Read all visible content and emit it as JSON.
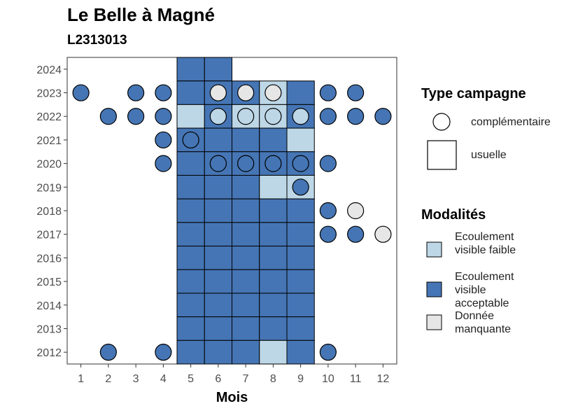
{
  "title": "Le Belle à Magné",
  "subtitle": "L2313013",
  "legend_type": {
    "title": "Type campagne",
    "items": [
      "complémentaire",
      "usuelle"
    ]
  },
  "legend_modalites": {
    "title": "Modalités",
    "items": [
      "Ecoulement visible faible",
      "Ecoulement visible acceptable",
      "Donnée manquante"
    ]
  },
  "colors": {
    "Ecoulement visible faible": "#bdd7e7",
    "Ecoulement visible acceptable": "#4575b4",
    "Donnée manquante": "#e6e6e6"
  },
  "chart_data": {
    "type": "heatmap",
    "title": "Le Belle à Magné",
    "subtitle": "L2313013",
    "xlabel": "Mois",
    "ylabel": "",
    "x_ticks": [
      1,
      2,
      3,
      4,
      5,
      6,
      7,
      8,
      9,
      10,
      11,
      12
    ],
    "y_ticks": [
      2012,
      2013,
      2014,
      2015,
      2016,
      2017,
      2018,
      2019,
      2020,
      2021,
      2022,
      2023,
      2024
    ],
    "xlim": [
      0.5,
      12.5
    ],
    "ylim": [
      2011.5,
      2024.5
    ],
    "usuelle": [
      {
        "year": 2024,
        "month": 5,
        "modalite": "Ecoulement visible acceptable"
      },
      {
        "year": 2024,
        "month": 6,
        "modalite": "Ecoulement visible acceptable"
      },
      {
        "year": 2023,
        "month": 5,
        "modalite": "Ecoulement visible acceptable"
      },
      {
        "year": 2023,
        "month": 6,
        "modalite": "Ecoulement visible acceptable"
      },
      {
        "year": 2023,
        "month": 7,
        "modalite": "Ecoulement visible acceptable"
      },
      {
        "year": 2023,
        "month": 8,
        "modalite": "Ecoulement visible faible"
      },
      {
        "year": 2023,
        "month": 9,
        "modalite": "Ecoulement visible acceptable"
      },
      {
        "year": 2022,
        "month": 5,
        "modalite": "Ecoulement visible faible"
      },
      {
        "year": 2022,
        "month": 6,
        "modalite": "Ecoulement visible acceptable"
      },
      {
        "year": 2022,
        "month": 7,
        "modalite": "Ecoulement visible faible"
      },
      {
        "year": 2022,
        "month": 8,
        "modalite": "Ecoulement visible faible"
      },
      {
        "year": 2022,
        "month": 9,
        "modalite": "Ecoulement visible acceptable"
      },
      {
        "year": 2021,
        "month": 5,
        "modalite": "Ecoulement visible acceptable"
      },
      {
        "year": 2021,
        "month": 6,
        "modalite": "Ecoulement visible acceptable"
      },
      {
        "year": 2021,
        "month": 7,
        "modalite": "Ecoulement visible acceptable"
      },
      {
        "year": 2021,
        "month": 8,
        "modalite": "Ecoulement visible acceptable"
      },
      {
        "year": 2021,
        "month": 9,
        "modalite": "Ecoulement visible faible"
      },
      {
        "year": 2020,
        "month": 5,
        "modalite": "Ecoulement visible acceptable"
      },
      {
        "year": 2020,
        "month": 6,
        "modalite": "Ecoulement visible acceptable"
      },
      {
        "year": 2020,
        "month": 7,
        "modalite": "Ecoulement visible acceptable"
      },
      {
        "year": 2020,
        "month": 8,
        "modalite": "Ecoulement visible acceptable"
      },
      {
        "year": 2020,
        "month": 9,
        "modalite": "Ecoulement visible acceptable"
      },
      {
        "year": 2019,
        "month": 5,
        "modalite": "Ecoulement visible acceptable"
      },
      {
        "year": 2019,
        "month": 6,
        "modalite": "Ecoulement visible acceptable"
      },
      {
        "year": 2019,
        "month": 7,
        "modalite": "Ecoulement visible acceptable"
      },
      {
        "year": 2019,
        "month": 8,
        "modalite": "Ecoulement visible faible"
      },
      {
        "year": 2019,
        "month": 9,
        "modalite": "Ecoulement visible faible"
      },
      {
        "year": 2018,
        "month": 5,
        "modalite": "Ecoulement visible acceptable"
      },
      {
        "year": 2018,
        "month": 6,
        "modalite": "Ecoulement visible acceptable"
      },
      {
        "year": 2018,
        "month": 7,
        "modalite": "Ecoulement visible acceptable"
      },
      {
        "year": 2018,
        "month": 8,
        "modalite": "Ecoulement visible acceptable"
      },
      {
        "year": 2018,
        "month": 9,
        "modalite": "Ecoulement visible acceptable"
      },
      {
        "year": 2017,
        "month": 5,
        "modalite": "Ecoulement visible acceptable"
      },
      {
        "year": 2017,
        "month": 6,
        "modalite": "Ecoulement visible acceptable"
      },
      {
        "year": 2017,
        "month": 7,
        "modalite": "Ecoulement visible acceptable"
      },
      {
        "year": 2017,
        "month": 8,
        "modalite": "Ecoulement visible acceptable"
      },
      {
        "year": 2017,
        "month": 9,
        "modalite": "Ecoulement visible acceptable"
      },
      {
        "year": 2016,
        "month": 5,
        "modalite": "Ecoulement visible acceptable"
      },
      {
        "year": 2016,
        "month": 6,
        "modalite": "Ecoulement visible acceptable"
      },
      {
        "year": 2016,
        "month": 7,
        "modalite": "Ecoulement visible acceptable"
      },
      {
        "year": 2016,
        "month": 8,
        "modalite": "Ecoulement visible acceptable"
      },
      {
        "year": 2016,
        "month": 9,
        "modalite": "Ecoulement visible acceptable"
      },
      {
        "year": 2015,
        "month": 5,
        "modalite": "Ecoulement visible acceptable"
      },
      {
        "year": 2015,
        "month": 6,
        "modalite": "Ecoulement visible acceptable"
      },
      {
        "year": 2015,
        "month": 7,
        "modalite": "Ecoulement visible acceptable"
      },
      {
        "year": 2015,
        "month": 8,
        "modalite": "Ecoulement visible acceptable"
      },
      {
        "year": 2015,
        "month": 9,
        "modalite": "Ecoulement visible acceptable"
      },
      {
        "year": 2014,
        "month": 5,
        "modalite": "Ecoulement visible acceptable"
      },
      {
        "year": 2014,
        "month": 6,
        "modalite": "Ecoulement visible acceptable"
      },
      {
        "year": 2014,
        "month": 7,
        "modalite": "Ecoulement visible acceptable"
      },
      {
        "year": 2014,
        "month": 8,
        "modalite": "Ecoulement visible acceptable"
      },
      {
        "year": 2014,
        "month": 9,
        "modalite": "Ecoulement visible acceptable"
      },
      {
        "year": 2013,
        "month": 5,
        "modalite": "Ecoulement visible acceptable"
      },
      {
        "year": 2013,
        "month": 6,
        "modalite": "Ecoulement visible acceptable"
      },
      {
        "year": 2013,
        "month": 7,
        "modalite": "Ecoulement visible acceptable"
      },
      {
        "year": 2013,
        "month": 8,
        "modalite": "Ecoulement visible acceptable"
      },
      {
        "year": 2013,
        "month": 9,
        "modalite": "Ecoulement visible acceptable"
      },
      {
        "year": 2012,
        "month": 5,
        "modalite": "Ecoulement visible acceptable"
      },
      {
        "year": 2012,
        "month": 6,
        "modalite": "Ecoulement visible acceptable"
      },
      {
        "year": 2012,
        "month": 7,
        "modalite": "Ecoulement visible acceptable"
      },
      {
        "year": 2012,
        "month": 8,
        "modalite": "Ecoulement visible faible"
      },
      {
        "year": 2012,
        "month": 9,
        "modalite": "Ecoulement visible acceptable"
      }
    ],
    "complementaire": [
      {
        "year": 2023,
        "month": 1,
        "modalite": "Ecoulement visible acceptable"
      },
      {
        "year": 2023,
        "month": 3,
        "modalite": "Ecoulement visible acceptable"
      },
      {
        "year": 2023,
        "month": 4,
        "modalite": "Ecoulement visible acceptable"
      },
      {
        "year": 2023,
        "month": 6,
        "modalite": "Donnée manquante"
      },
      {
        "year": 2023,
        "month": 7,
        "modalite": "Donnée manquante"
      },
      {
        "year": 2023,
        "month": 8,
        "modalite": "Donnée manquante"
      },
      {
        "year": 2023,
        "month": 10,
        "modalite": "Ecoulement visible acceptable"
      },
      {
        "year": 2023,
        "month": 11,
        "modalite": "Ecoulement visible acceptable"
      },
      {
        "year": 2022,
        "month": 2,
        "modalite": "Ecoulement visible acceptable"
      },
      {
        "year": 2022,
        "month": 3,
        "modalite": "Ecoulement visible acceptable"
      },
      {
        "year": 2022,
        "month": 4,
        "modalite": "Ecoulement visible acceptable"
      },
      {
        "year": 2022,
        "month": 6,
        "modalite": "Ecoulement visible faible"
      },
      {
        "year": 2022,
        "month": 7,
        "modalite": "Ecoulement visible faible"
      },
      {
        "year": 2022,
        "month": 8,
        "modalite": "Ecoulement visible faible"
      },
      {
        "year": 2022,
        "month": 9,
        "modalite": "Ecoulement visible faible"
      },
      {
        "year": 2022,
        "month": 10,
        "modalite": "Ecoulement visible acceptable"
      },
      {
        "year": 2022,
        "month": 11,
        "modalite": "Ecoulement visible acceptable"
      },
      {
        "year": 2022,
        "month": 12,
        "modalite": "Ecoulement visible acceptable"
      },
      {
        "year": 2021,
        "month": 4,
        "modalite": "Ecoulement visible acceptable"
      },
      {
        "year": 2021,
        "month": 5,
        "modalite": "Ecoulement visible acceptable"
      },
      {
        "year": 2020,
        "month": 4,
        "modalite": "Ecoulement visible acceptable"
      },
      {
        "year": 2020,
        "month": 6,
        "modalite": "Ecoulement visible acceptable"
      },
      {
        "year": 2020,
        "month": 7,
        "modalite": "Ecoulement visible acceptable"
      },
      {
        "year": 2020,
        "month": 8,
        "modalite": "Ecoulement visible acceptable"
      },
      {
        "year": 2020,
        "month": 9,
        "modalite": "Ecoulement visible acceptable"
      },
      {
        "year": 2020,
        "month": 10,
        "modalite": "Ecoulement visible acceptable"
      },
      {
        "year": 2019,
        "month": 9,
        "modalite": "Ecoulement visible acceptable"
      },
      {
        "year": 2018,
        "month": 10,
        "modalite": "Ecoulement visible acceptable"
      },
      {
        "year": 2018,
        "month": 11,
        "modalite": "Donnée manquante"
      },
      {
        "year": 2017,
        "month": 10,
        "modalite": "Ecoulement visible acceptable"
      },
      {
        "year": 2017,
        "month": 11,
        "modalite": "Ecoulement visible acceptable"
      },
      {
        "year": 2017,
        "month": 12,
        "modalite": "Donnée manquante"
      },
      {
        "year": 2012,
        "month": 2,
        "modalite": "Ecoulement visible acceptable"
      },
      {
        "year": 2012,
        "month": 4,
        "modalite": "Ecoulement visible acceptable"
      },
      {
        "year": 2012,
        "month": 10,
        "modalite": "Ecoulement visible acceptable"
      }
    ]
  }
}
